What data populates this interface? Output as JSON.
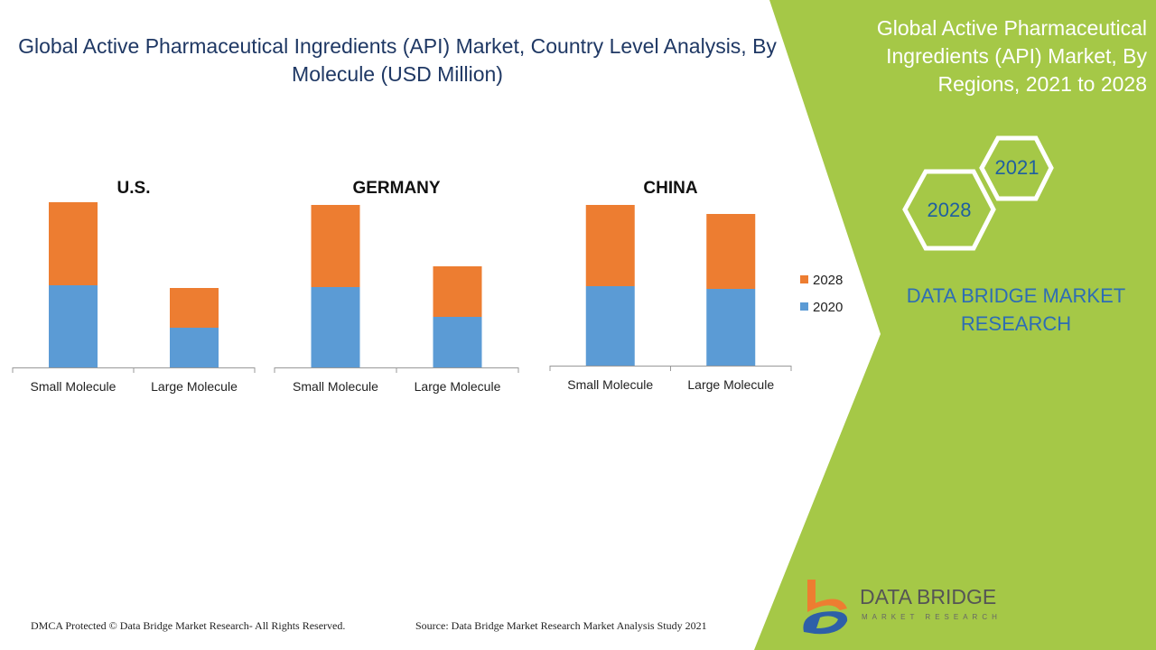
{
  "title": "Global Active Pharmaceutical Ingredients (API) Market, Country Level Analysis, By Molecule (USD Million)",
  "side_panel": {
    "title": "Global Active Pharmaceutical Ingredients (API) Market, By Regions, 2021 to 2028",
    "hex_years": [
      "2021",
      "2028"
    ],
    "brand": "DATA BRIDGE MARKET RESEARCH",
    "colors": {
      "panel": "#a5c847",
      "hex_outline": "#ffffff",
      "brand_text": "#2e6db4"
    }
  },
  "chart_data": [
    {
      "type": "bar",
      "stacked": true,
      "title": "U.S.",
      "categories": [
        "Small Molecule",
        "Large Molecule"
      ],
      "series": [
        {
          "name": "2020",
          "values": [
            91,
            44
          ],
          "color": "#5b9bd5"
        },
        {
          "name": "2028",
          "values": [
            92,
            44
          ],
          "color": "#ed7d31"
        }
      ]
    },
    {
      "type": "bar",
      "stacked": true,
      "title": "GERMANY",
      "categories": [
        "Small Molecule",
        "Large Molecule"
      ],
      "series": [
        {
          "name": "2020",
          "values": [
            89,
            56
          ],
          "color": "#5b9bd5"
        },
        {
          "name": "2028",
          "values": [
            91,
            56
          ],
          "color": "#ed7d31"
        }
      ]
    },
    {
      "type": "bar",
      "stacked": true,
      "title": "CHINA",
      "categories": [
        "Small Molecule",
        "Large Molecule"
      ],
      "series": [
        {
          "name": "2020",
          "values": [
            88,
            85
          ],
          "color": "#5b9bd5"
        },
        {
          "name": "2028",
          "values": [
            90,
            83
          ],
          "color": "#ed7d31"
        }
      ]
    }
  ],
  "legend": {
    "items": [
      "2028",
      "2020"
    ],
    "placement": "right"
  },
  "footer": {
    "dmca": "DMCA Protected © Data Bridge Market Research- All Rights Reserved.",
    "source": "Source: Data Bridge Market Research Market Analysis Study 2021"
  },
  "logo": {
    "name": "DATA BRIDGE",
    "tagline": "MARKET RESEARCH"
  }
}
